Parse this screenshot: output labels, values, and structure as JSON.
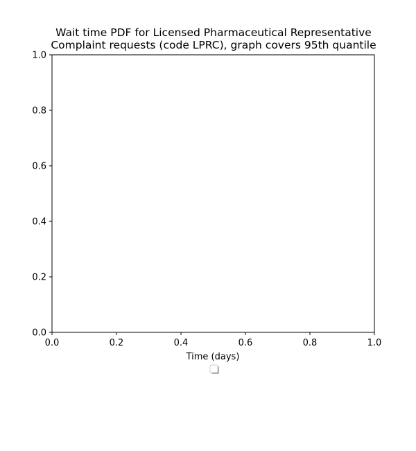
{
  "chart_data": {
    "type": "line",
    "title_lines": [
      "Wait time PDF for Licensed Pharmaceutical Representative",
      "Complaint  requests (code LPRC), graph covers 95th quantile"
    ],
    "xlabel": "Time (days)",
    "ylabel": "",
    "xlim": [
      0.0,
      1.0
    ],
    "ylim": [
      0.0,
      1.0
    ],
    "xticks": [
      "0.0",
      "0.2",
      "0.4",
      "0.6",
      "0.8",
      "1.0"
    ],
    "yticks": [
      "0.0",
      "0.2",
      "0.4",
      "0.6",
      "0.8",
      "1.0"
    ],
    "series": [],
    "grid": false,
    "legend": {
      "placement": "below plot",
      "entries": []
    }
  }
}
